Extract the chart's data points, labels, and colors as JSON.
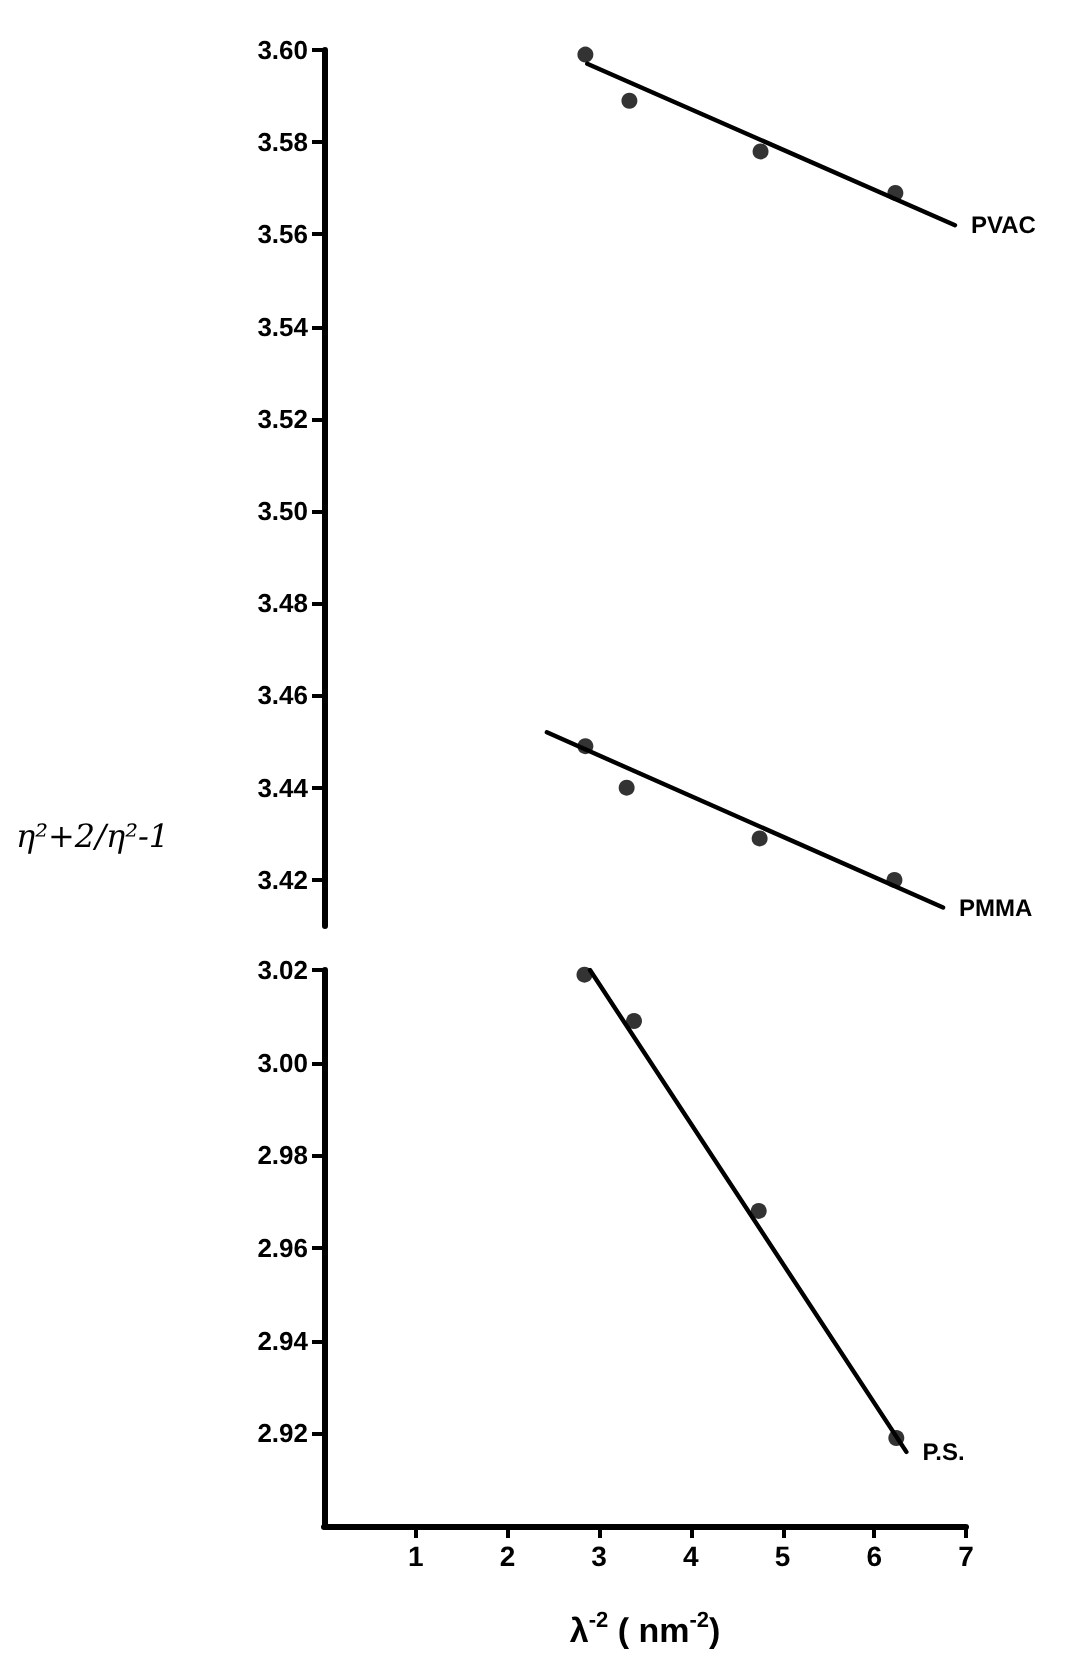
{
  "chart_data": [
    {
      "type": "scatter",
      "ylabel": "η²+2/η²-1",
      "xlim": [
        0,
        7
      ],
      "ylim": [
        3.41,
        3.6
      ],
      "tick_labels": "y",
      "grid": false,
      "legend": false,
      "marker": "circle",
      "yticks": [
        {
          "value": 3.42,
          "label": "3.42"
        },
        {
          "value": 3.44,
          "label": "3.44"
        },
        {
          "value": 3.46,
          "label": "3.46"
        },
        {
          "value": 3.48,
          "label": "3.48"
        },
        {
          "value": 3.5,
          "label": "3.50"
        },
        {
          "value": 3.52,
          "label": "3.52"
        },
        {
          "value": 3.54,
          "label": "3.54"
        },
        {
          "value": 3.56,
          "label": "3.56"
        },
        {
          "value": 3.58,
          "label": "3.58"
        },
        {
          "value": 3.6,
          "label": "3.60"
        }
      ],
      "series": [
        {
          "color": "#000000",
          "x": [
            2.85,
            3.33,
            4.76,
            6.23
          ],
          "values": [
            3.599,
            3.589,
            3.578,
            3.569
          ]
        },
        {
          "type": "line",
          "name": "PVAC",
          "color": "#000000",
          "marker": "none",
          "x": [
            2.87,
            6.88
          ],
          "values": [
            3.597,
            3.562
          ]
        },
        {
          "color": "#000000",
          "x": [
            2.85,
            3.3,
            4.75,
            6.22
          ],
          "values": [
            3.449,
            3.44,
            3.429,
            3.42
          ]
        },
        {
          "type": "line",
          "name": "PMMA",
          "color": "#000000",
          "marker": "none",
          "x": [
            2.43,
            6.75
          ],
          "values": [
            3.452,
            3.414
          ]
        }
      ]
    },
    {
      "type": "scatter",
      "xlabel": "λ$^{-2}$ ( nm$^{-2}$)",
      "xlim": [
        0,
        7
      ],
      "ylim": [
        2.9,
        3.02
      ],
      "grid": false,
      "legend": false,
      "marker": "circle",
      "xticks": [
        1,
        2,
        3,
        4,
        5,
        6,
        7
      ],
      "yticks": [
        {
          "value": 2.92,
          "label": "2.92"
        },
        {
          "value": 2.94,
          "label": "2.94"
        },
        {
          "value": 2.96,
          "label": "2.96"
        },
        {
          "value": 2.98,
          "label": "2.98"
        },
        {
          "value": 3.0,
          "label": "3.00"
        },
        {
          "value": 3.02,
          "label": "3.02"
        }
      ],
      "series": [
        {
          "color": "#000000",
          "x": [
            2.84,
            3.38,
            4.74,
            6.24
          ],
          "values": [
            3.019,
            3.009,
            2.968,
            2.919
          ]
        },
        {
          "type": "line",
          "name": "P.S.",
          "color": "#000000",
          "marker": "none",
          "x": [
            2.9,
            6.35
          ],
          "values": [
            3.02,
            2.916
          ]
        }
      ]
    }
  ]
}
